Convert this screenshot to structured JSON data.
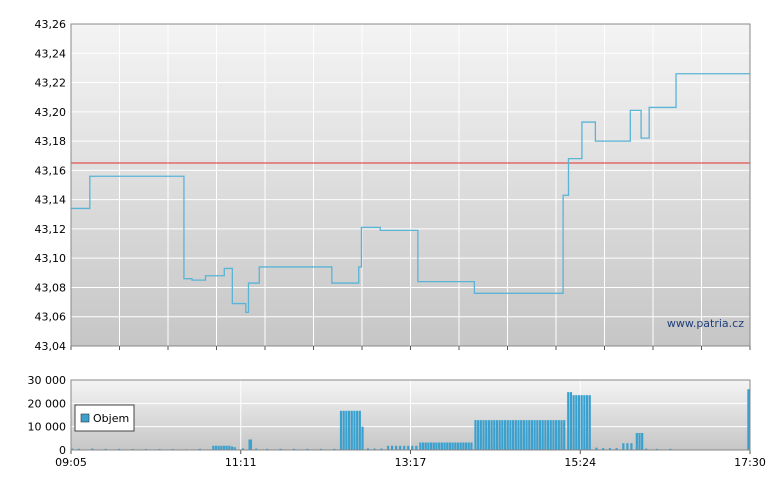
{
  "chart_data": [
    {
      "type": "line",
      "title": "",
      "xlabel": "",
      "ylabel": "",
      "ylim": [
        43.04,
        43.26
      ],
      "y_ticks": [
        "43,26",
        "43,24",
        "43,22",
        "43,20",
        "43,18",
        "43,16",
        "43,14",
        "43,12",
        "43,10",
        "43,08",
        "43,06",
        "43,04"
      ],
      "grid": true,
      "reference_line": {
        "value": 43.165,
        "color": "#e0302a"
      },
      "watermark": "www.patria.cz",
      "series": [
        {
          "color": "#5ab4d6",
          "points": [
            [
              "09:05",
              43.134
            ],
            [
              "09:19",
              43.134
            ],
            [
              "09:19",
              43.156
            ],
            [
              "10:29",
              43.156
            ],
            [
              "10:29",
              43.086
            ],
            [
              "10:35",
              43.086
            ],
            [
              "10:35",
              43.085
            ],
            [
              "10:45",
              43.085
            ],
            [
              "10:45",
              43.088
            ],
            [
              "10:59",
              43.088
            ],
            [
              "10:59",
              43.093
            ],
            [
              "11:05",
              43.093
            ],
            [
              "11:05",
              43.069
            ],
            [
              "11:15",
              43.069
            ],
            [
              "11:15",
              43.063
            ],
            [
              "11:17",
              43.063
            ],
            [
              "11:17",
              43.083
            ],
            [
              "11:25",
              43.083
            ],
            [
              "11:25",
              43.094
            ],
            [
              "12:19",
              43.094
            ],
            [
              "12:19",
              43.083
            ],
            [
              "12:39",
              43.083
            ],
            [
              "12:39",
              43.094
            ],
            [
              "12:41",
              43.094
            ],
            [
              "12:41",
              43.121
            ],
            [
              "12:55",
              43.121
            ],
            [
              "12:55",
              43.119
            ],
            [
              "13:23",
              43.119
            ],
            [
              "13:23",
              43.084
            ],
            [
              "14:05",
              43.084
            ],
            [
              "14:05",
              43.076
            ],
            [
              "15:11",
              43.076
            ],
            [
              "15:11",
              43.143
            ],
            [
              "15:15",
              43.143
            ],
            [
              "15:15",
              43.168
            ],
            [
              "15:25",
              43.168
            ],
            [
              "15:25",
              43.193
            ],
            [
              "15:35",
              43.193
            ],
            [
              "15:35",
              43.18
            ],
            [
              "16:01",
              43.18
            ],
            [
              "16:01",
              43.201
            ],
            [
              "16:09",
              43.201
            ],
            [
              "16:09",
              43.182
            ],
            [
              "16:15",
              43.182
            ],
            [
              "16:15",
              43.203
            ],
            [
              "16:35",
              43.203
            ],
            [
              "16:35",
              43.226
            ],
            [
              "17:30",
              43.226
            ]
          ]
        }
      ]
    },
    {
      "type": "bar",
      "title": "",
      "ylim": [
        0,
        30000
      ],
      "y_ticks": [
        "30 000",
        "20 000",
        "10 000",
        "0"
      ],
      "x_ticks": [
        "09:05",
        "11:11",
        "13:17",
        "15:24",
        "17:30"
      ],
      "legend": {
        "label": "Objem",
        "color": "#3aa1cf",
        "position": "left"
      },
      "grid": true,
      "bar_color": "#3aa1cf",
      "bars": [
        [
          "09:05",
          600
        ],
        [
          "09:10",
          500
        ],
        [
          "09:20",
          600
        ],
        [
          "09:30",
          500
        ],
        [
          "09:40",
          500
        ],
        [
          "09:50",
          400
        ],
        [
          "10:00",
          400
        ],
        [
          "10:10",
          400
        ],
        [
          "10:20",
          400
        ],
        [
          "10:30",
          300
        ],
        [
          "10:40",
          500
        ],
        [
          "10:50",
          1800
        ],
        [
          "10:52",
          1800
        ],
        [
          "10:54",
          1800
        ],
        [
          "10:56",
          1800
        ],
        [
          "10:58",
          1800
        ],
        [
          "11:00",
          1800
        ],
        [
          "11:02",
          1800
        ],
        [
          "11:04",
          1500
        ],
        [
          "11:06",
          1200
        ],
        [
          "11:12",
          700
        ],
        [
          "11:17",
          4500
        ],
        [
          "11:18",
          4500
        ],
        [
          "11:22",
          600
        ],
        [
          "11:30",
          500
        ],
        [
          "11:40",
          500
        ],
        [
          "11:50",
          500
        ],
        [
          "12:00",
          500
        ],
        [
          "12:10",
          500
        ],
        [
          "12:20",
          500
        ],
        [
          "12:25",
          16800
        ],
        [
          "12:27",
          16800
        ],
        [
          "12:29",
          16800
        ],
        [
          "12:31",
          16800
        ],
        [
          "12:33",
          16800
        ],
        [
          "12:35",
          16800
        ],
        [
          "12:37",
          16800
        ],
        [
          "12:39",
          16800
        ],
        [
          "12:41",
          10000
        ],
        [
          "12:45",
          700
        ],
        [
          "12:50",
          600
        ],
        [
          "12:55",
          600
        ],
        [
          "13:00",
          1800
        ],
        [
          "13:03",
          1800
        ],
        [
          "13:06",
          1800
        ],
        [
          "13:09",
          1800
        ],
        [
          "13:12",
          1800
        ],
        [
          "13:15",
          1800
        ],
        [
          "13:18",
          1800
        ],
        [
          "13:21",
          1800
        ],
        [
          "13:24",
          3200
        ],
        [
          "13:26",
          3200
        ],
        [
          "13:28",
          3200
        ],
        [
          "13:30",
          3200
        ],
        [
          "13:32",
          3200
        ],
        [
          "13:34",
          3200
        ],
        [
          "13:36",
          3200
        ],
        [
          "13:38",
          3200
        ],
        [
          "13:40",
          3200
        ],
        [
          "13:42",
          3200
        ],
        [
          "13:44",
          3200
        ],
        [
          "13:46",
          3200
        ],
        [
          "13:48",
          3200
        ],
        [
          "13:50",
          3200
        ],
        [
          "13:52",
          3200
        ],
        [
          "13:54",
          3200
        ],
        [
          "13:56",
          3200
        ],
        [
          "13:58",
          3200
        ],
        [
          "14:00",
          3200
        ],
        [
          "14:02",
          3200
        ],
        [
          "14:05",
          12800
        ],
        [
          "14:07",
          12800
        ],
        [
          "14:09",
          12800
        ],
        [
          "14:11",
          12800
        ],
        [
          "14:13",
          12800
        ],
        [
          "14:15",
          12800
        ],
        [
          "14:17",
          12800
        ],
        [
          "14:19",
          12800
        ],
        [
          "14:21",
          12800
        ],
        [
          "14:23",
          12800
        ],
        [
          "14:25",
          12800
        ],
        [
          "14:27",
          12800
        ],
        [
          "14:29",
          12800
        ],
        [
          "14:31",
          12800
        ],
        [
          "14:33",
          12800
        ],
        [
          "14:35",
          12800
        ],
        [
          "14:37",
          12800
        ],
        [
          "14:39",
          12800
        ],
        [
          "14:41",
          12800
        ],
        [
          "14:43",
          12800
        ],
        [
          "14:45",
          12800
        ],
        [
          "14:47",
          12800
        ],
        [
          "14:49",
          12800
        ],
        [
          "14:51",
          12800
        ],
        [
          "14:53",
          12800
        ],
        [
          "14:55",
          12800
        ],
        [
          "14:57",
          12800
        ],
        [
          "14:59",
          12800
        ],
        [
          "15:01",
          12800
        ],
        [
          "15:03",
          12800
        ],
        [
          "15:05",
          12800
        ],
        [
          "15:07",
          12800
        ],
        [
          "15:09",
          12800
        ],
        [
          "15:11",
          12800
        ],
        [
          "15:14",
          24800
        ],
        [
          "15:16",
          24800
        ],
        [
          "15:18",
          23500
        ],
        [
          "15:20",
          23500
        ],
        [
          "15:22",
          23500
        ],
        [
          "15:24",
          23500
        ],
        [
          "15:26",
          23500
        ],
        [
          "15:28",
          23500
        ],
        [
          "15:30",
          23500
        ],
        [
          "15:35",
          1000
        ],
        [
          "15:40",
          800
        ],
        [
          "15:45",
          800
        ],
        [
          "15:50",
          800
        ],
        [
          "15:55",
          2900
        ],
        [
          "15:58",
          2900
        ],
        [
          "16:01",
          2900
        ],
        [
          "16:05",
          7300
        ],
        [
          "16:07",
          7300
        ],
        [
          "16:09",
          7300
        ],
        [
          "16:12",
          600
        ],
        [
          "16:20",
          500
        ],
        [
          "16:30",
          500
        ],
        [
          "17:28",
          26000
        ],
        [
          "17:30",
          26000
        ]
      ]
    }
  ]
}
